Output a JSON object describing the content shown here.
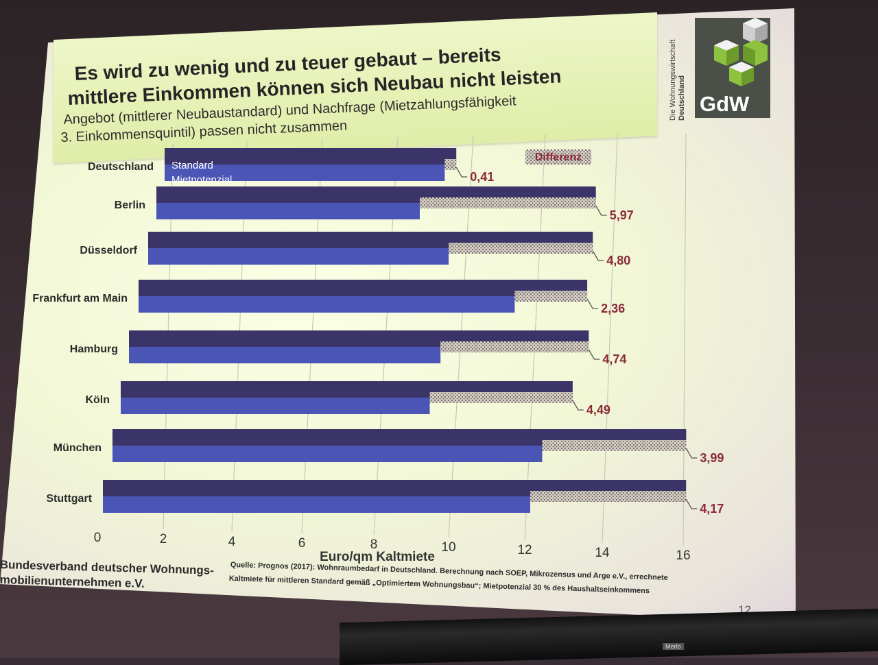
{
  "slide": {
    "title_line1": "Es wird zu wenig und zu teuer gebaut – bereits",
    "title_line2": "mittlere Einkommen können sich Neubau nicht leisten",
    "subtitle_line1": "Angebot (mittlerer Neubaustandard) und Nachfrage (Mietzahlungsfähigkeit",
    "subtitle_line2": "3. Einkommensquintil) passen nicht zusammen",
    "logo_text": "GdW",
    "org_vertical_line1": "Die Wohnungswirtschaft",
    "org_vertical_line2": "Deutschland",
    "footer_org_line1": "Bundesverband deutscher Wohnungs-",
    "footer_org_line2": "mobilienunternehmen e.V.",
    "source_line1": "Quelle: Prognos (2017): Wohnraumbedarf in Deutschland. Berechnung nach SOEP, Mikrozensus und Arge e.V., errechnete",
    "source_line2": "Kaltmiete für mittleren Standard gemäß „Optimiertem Wohnungsbau“; Mietpotenzial 30 % des Haushaltseinkommens",
    "page_number": "12",
    "projector_label": "Merlo"
  },
  "chart_data": {
    "type": "bar",
    "orientation": "horizontal",
    "categories": [
      "Deutschland",
      "Berlin",
      "Düsseldorf",
      "Frankfurt am Main",
      "Hamburg",
      "Köln",
      "München",
      "Stuttgart"
    ],
    "series": [
      {
        "name": "Standard",
        "values": [
          10.1,
          14.9,
          14.8,
          14.6,
          14.7,
          14.2,
          15.9,
          15.6
        ]
      },
      {
        "name": "Mietpotenzial",
        "values": [
          9.7,
          8.93,
          10.0,
          12.24,
          9.96,
          9.71,
          11.91,
          11.43
        ]
      },
      {
        "name": "Differenz",
        "values": [
          0.41,
          5.97,
          4.8,
          2.36,
          4.74,
          4.49,
          3.99,
          4.17
        ]
      }
    ],
    "difference_labels": [
      "0,41",
      "5,97",
      "4,80",
      "2,36",
      "4,74",
      "4,49",
      "3,99",
      "4,17"
    ],
    "xlabel": "Euro/qm Kaltmiete",
    "xlim": [
      0,
      16
    ],
    "x_ticks": [
      "0",
      "2",
      "4",
      "6",
      "8",
      "10",
      "12",
      "14",
      "16"
    ],
    "legend": "inside-first-bar",
    "colors": {
      "standard": "#3a3468",
      "mietpotenzial": "#4a55b6",
      "differenz": "#b9b2aa",
      "value_label": "#8b2a39"
    }
  }
}
